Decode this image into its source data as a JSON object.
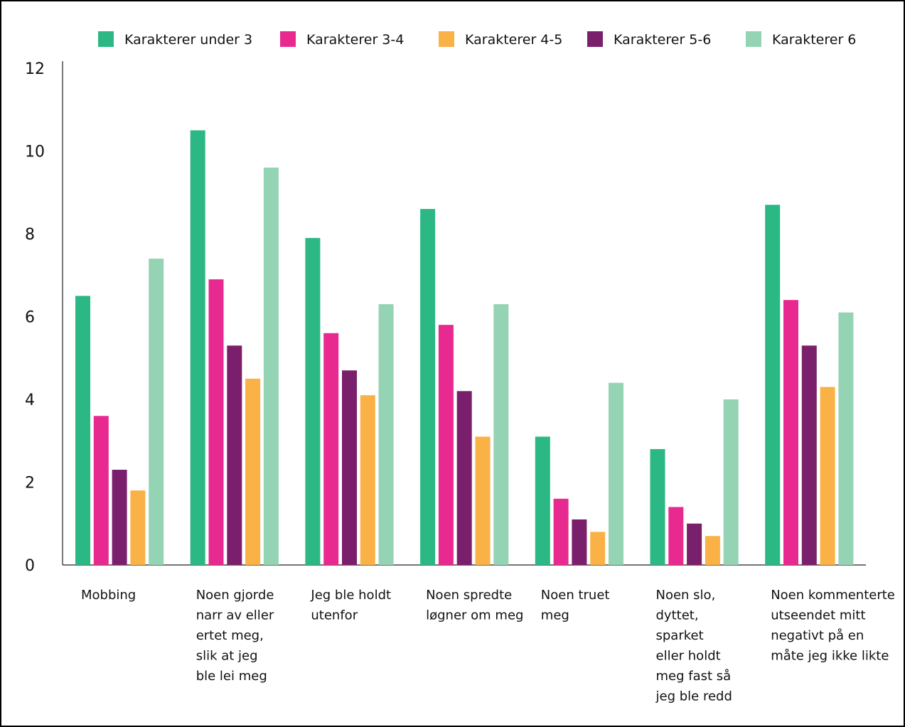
{
  "chart_data": {
    "type": "bar",
    "title": "",
    "xlabel": "",
    "ylabel": "",
    "ylim": [
      0,
      12
    ],
    "yticks": [
      "0",
      "2",
      "4",
      "6",
      "8",
      "10",
      "12"
    ],
    "grid": false,
    "legend_position": "top",
    "categories": [
      [
        "Mobbing"
      ],
      [
        "Noen gjorde",
        "narr av eller",
        "ertet meg,",
        "slik at jeg",
        "ble lei meg"
      ],
      [
        "Jeg ble holdt",
        "utenfor"
      ],
      [
        "Noen spredte",
        "løgner om meg"
      ],
      [
        "Noen truet",
        "meg"
      ],
      [
        "Noen slo,",
        "dyttet,",
        "sparket",
        "eller holdt",
        "meg fast så",
        "jeg ble redd"
      ],
      [
        "Noen kommenterte",
        "utseendet mitt",
        "negativt på en",
        "måte jeg ikke likte"
      ]
    ],
    "series": [
      {
        "name": "Karakterer under 3",
        "color": "#2bb884",
        "values": [
          6.5,
          10.5,
          7.9,
          8.6,
          3.1,
          2.8,
          8.7
        ]
      },
      {
        "name": "Karakterer 3-4",
        "color": "#e8298f",
        "values": [
          3.6,
          6.9,
          5.6,
          5.8,
          1.6,
          1.4,
          6.4
        ]
      },
      {
        "name": "Karakterer 5-6",
        "color": "#7a1f6b",
        "values": [
          2.3,
          5.3,
          4.7,
          4.2,
          1.1,
          1.0,
          5.3
        ]
      },
      {
        "name": "Karakterer 4-5",
        "color": "#fab146",
        "values": [
          1.8,
          4.5,
          4.1,
          3.1,
          0.8,
          0.7,
          4.3
        ]
      },
      {
        "name": "Karakterer 6",
        "color": "#95d3b5",
        "values": [
          7.4,
          9.6,
          6.3,
          6.3,
          4.4,
          4.0,
          6.1
        ]
      }
    ],
    "legend_order": [
      0,
      1,
      3,
      2,
      4
    ]
  }
}
